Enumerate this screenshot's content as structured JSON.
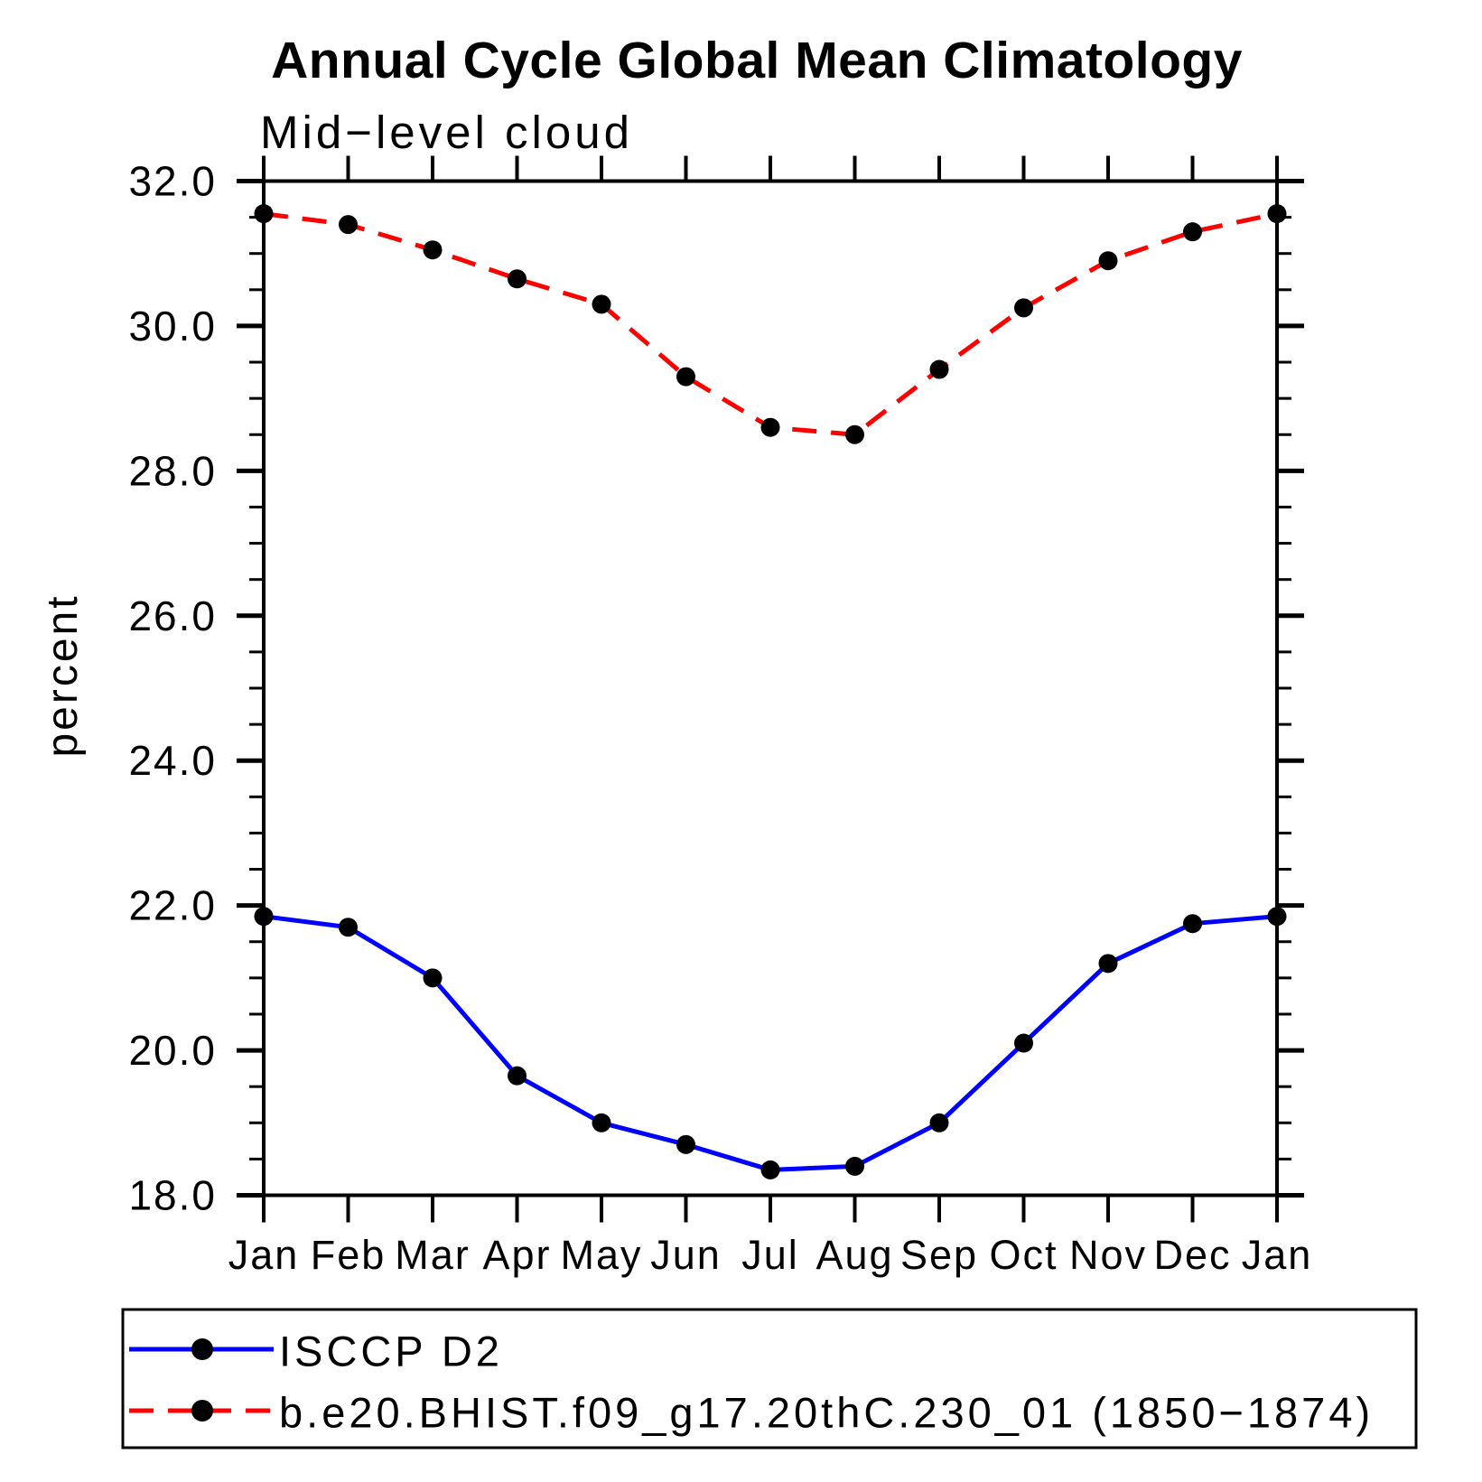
{
  "title": "Annual Cycle Global Mean Climatology",
  "subtitle": "Mid−level cloud",
  "ylabel": "percent",
  "colors": {
    "series1": "#0000ff",
    "series2": "#ff0000",
    "marker": "#000000",
    "axis": "#000000",
    "background": "#ffffff"
  },
  "chart_data": {
    "type": "line",
    "title": "Annual Cycle Global Mean Climatology",
    "subtitle": "Mid−level cloud",
    "xlabel": "",
    "ylabel": "percent",
    "x_tick_labels": [
      "Jan",
      "Feb",
      "Mar",
      "Apr",
      "May",
      "Jun",
      "Jul",
      "Aug",
      "Sep",
      "Oct",
      "Nov",
      "Dec",
      "Jan"
    ],
    "y_tick_labels": [
      "18.0",
      "20.0",
      "22.0",
      "24.0",
      "26.0",
      "28.0",
      "30.0",
      "32.0"
    ],
    "y_major_ticks": [
      18,
      20,
      22,
      24,
      26,
      28,
      30,
      32
    ],
    "y_minor_step": 0.5,
    "ylim": [
      18,
      32
    ],
    "grid": false,
    "legend_position": "bottom",
    "series": [
      {
        "name": "ISCCP D2",
        "color": "#0000ff",
        "style": "solid",
        "marker": "circle",
        "values": [
          21.85,
          21.7,
          21.0,
          19.65,
          19.0,
          18.7,
          18.35,
          18.4,
          19.0,
          20.1,
          21.2,
          21.75,
          21.85
        ]
      },
      {
        "name": "b.e20.BHIST.f09_g17.20thC.230_01 (1850−1874)",
        "color": "#ff0000",
        "style": "dashed",
        "marker": "circle",
        "values": [
          31.55,
          31.4,
          31.05,
          30.65,
          30.3,
          29.3,
          28.6,
          28.5,
          29.4,
          30.25,
          30.9,
          31.3,
          31.55
        ]
      }
    ]
  }
}
